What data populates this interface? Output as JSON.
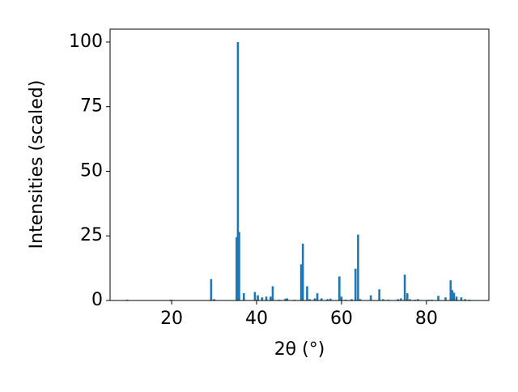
{
  "chart_data": {
    "type": "bar",
    "xlabel": "2θ (°)",
    "ylabel": "Intensities (scaled)",
    "x": [
      9.5,
      19.8,
      29.3,
      30.0,
      35.3,
      35.6,
      35.9,
      37.0,
      39.6,
      40.3,
      41.3,
      42.3,
      43.3,
      43.8,
      45.3,
      46.8,
      47.2,
      48.9,
      50.5,
      50.9,
      51.9,
      52.5,
      53.7,
      54.3,
      55.3,
      56.7,
      57.4,
      59.5,
      60.0,
      61.0,
      62.4,
      63.3,
      63.9,
      64.4,
      66.9,
      68.9,
      69.8,
      71.0,
      73.3,
      74.0,
      74.9,
      75.5,
      76.1,
      77.3,
      78.0,
      80.5,
      81.3,
      82.8,
      84.5,
      85.7,
      86.1,
      86.5,
      87.1,
      88.2,
      89.1,
      90.1
    ],
    "values": [
      0.3,
      0.3,
      8.3,
      0.5,
      24.5,
      100,
      26.5,
      2.8,
      3.3,
      2,
      1.2,
      1.5,
      1.5,
      5.5,
      0.3,
      0.7,
      0.8,
      0.3,
      14,
      22,
      5.5,
      0.5,
      0.8,
      2.8,
      0.8,
      0.5,
      0.7,
      9.3,
      1.5,
      0.3,
      0.5,
      12.3,
      25.5,
      0.5,
      2,
      4.3,
      0.5,
      0.3,
      0.5,
      0.8,
      10,
      2.8,
      0.5,
      0.3,
      0.5,
      0.3,
      0.3,
      1.8,
      1.2,
      7.8,
      4,
      3,
      1.5,
      1.2,
      0.5,
      0.3
    ],
    "color": "#1f77b4",
    "xlim": [
      5.5,
      94.7
    ],
    "xticks": [
      20,
      40,
      60,
      80
    ],
    "ylim": [
      0,
      105
    ],
    "yticks": [
      0,
      25,
      50,
      75,
      100
    ],
    "grid": false
  }
}
